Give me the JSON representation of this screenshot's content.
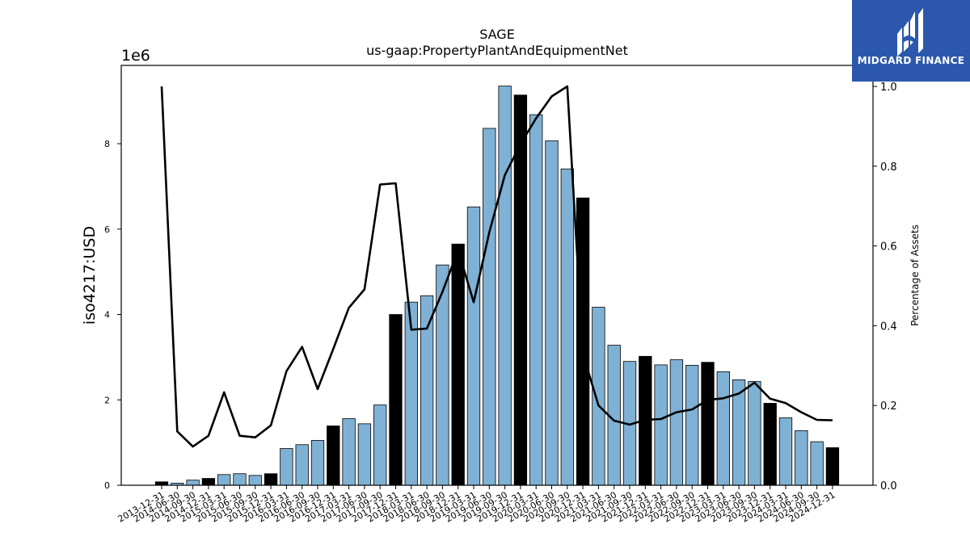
{
  "logo": {
    "text": "MIDGARD FINANCE"
  },
  "chart_data": {
    "type": "bar",
    "title": "SAGE",
    "subtitle": "us-gaap:PropertyPlantAndEquipmentNet",
    "ylabel": "iso4217:USD",
    "y2label": "Percentage of Assets",
    "y_offset_label": "1e6",
    "ylim": [
      0,
      9800000
    ],
    "y2lim": [
      0,
      1.0
    ],
    "yticks": [
      0,
      2000000,
      4000000,
      6000000,
      8000000
    ],
    "ytick_labels": [
      "0",
      "2",
      "4",
      "6",
      "8"
    ],
    "y2ticks": [
      0.0,
      0.2,
      0.4,
      0.6,
      0.8,
      1.0
    ],
    "y2tick_labels": [
      "0.0",
      "0.2",
      "0.4",
      "0.6",
      "0.8",
      "1.0"
    ],
    "grid": false,
    "colors": {
      "bar": "#7fb1d5",
      "highlight": "#000000",
      "line": "#000000"
    },
    "categories": [
      "2013-12-31",
      "2014-06-30",
      "2014-09-30",
      "2014-12-31",
      "2015-03-31",
      "2015-06-30",
      "2015-09-30",
      "2015-12-31",
      "2016-03-31",
      "2016-06-30",
      "2016-09-30",
      "2016-12-31",
      "2017-03-31",
      "2017-06-30",
      "2017-09-30",
      "2017-12-31",
      "2018-03-31",
      "2018-06-30",
      "2018-09-30",
      "2018-12-31",
      "2019-03-31",
      "2019-06-30",
      "2019-09-30",
      "2019-12-31",
      "2020-03-31",
      "2020-06-30",
      "2020-09-30",
      "2020-12-31",
      "2021-03-31",
      "2021-06-30",
      "2021-09-30",
      "2021-12-31",
      "2022-03-31",
      "2022-06-30",
      "2022-09-30",
      "2022-12-31",
      "2023-03-31",
      "2023-06-30",
      "2023-09-30",
      "2023-12-31",
      "2024-03-31",
      "2024-06-30",
      "2024-09-30",
      "2024-12-31"
    ],
    "series": [
      {
        "type": "bar",
        "values": [
          80000,
          50000,
          120000,
          160000,
          250000,
          270000,
          230000,
          270000,
          860000,
          950000,
          1050000,
          1390000,
          1560000,
          1440000,
          1880000,
          4000000,
          4290000,
          4440000,
          5160000,
          5650000,
          6520000,
          8360000,
          9350000,
          9140000,
          8680000,
          8070000,
          7410000,
          6730000,
          4170000,
          3280000,
          2900000,
          3020000,
          2820000,
          2940000,
          2810000,
          2880000,
          2660000,
          2470000,
          2430000,
          1920000,
          1580000,
          1280000,
          1020000,
          880000
        ],
        "highlight": [
          true,
          false,
          false,
          true,
          false,
          false,
          false,
          true,
          false,
          false,
          false,
          true,
          false,
          false,
          false,
          true,
          false,
          false,
          false,
          true,
          false,
          false,
          false,
          true,
          false,
          false,
          false,
          true,
          false,
          false,
          false,
          true,
          false,
          false,
          false,
          true,
          false,
          false,
          false,
          true,
          false,
          false,
          false,
          true
        ]
      },
      {
        "type": "line",
        "axis": "right",
        "values": [
          1.0,
          0.135,
          0.097,
          0.124,
          0.233,
          0.124,
          0.12,
          0.15,
          0.286,
          0.347,
          0.241,
          0.342,
          0.445,
          0.491,
          0.754,
          0.757,
          0.39,
          0.393,
          0.485,
          0.589,
          0.459,
          0.634,
          0.778,
          0.855,
          0.92,
          0.975,
          1.0,
          0.33,
          0.2,
          0.162,
          0.152,
          0.164,
          0.166,
          0.183,
          0.19,
          0.214,
          0.218,
          0.23,
          0.257,
          0.217,
          0.206,
          0.183,
          0.164,
          0.163
        ]
      }
    ]
  }
}
